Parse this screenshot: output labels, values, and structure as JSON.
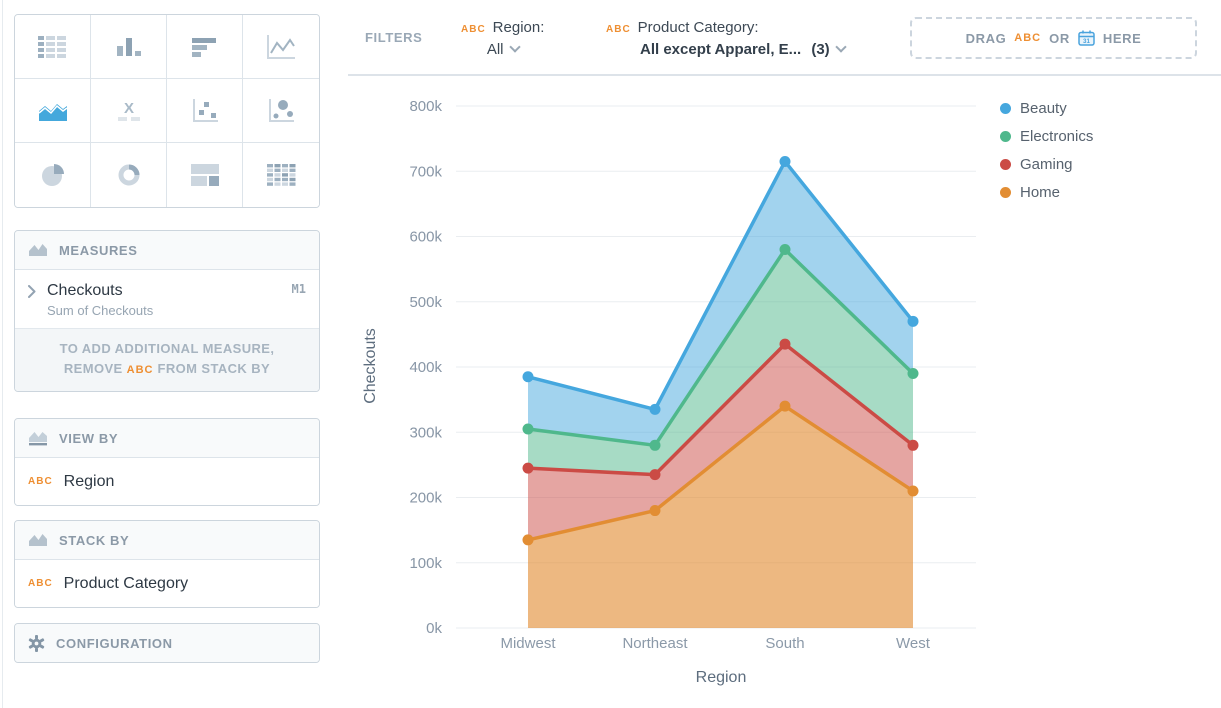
{
  "filter_bar": {
    "label": "FILTERS",
    "region_filter": {
      "badge": "ABC",
      "name": "Region:",
      "value": "All"
    },
    "category_filter": {
      "badge": "ABC",
      "name": "Product Category:",
      "value": "All except Apparel, E...",
      "count": "(3)"
    },
    "dropzone": {
      "drag": "DRAG",
      "badge": "ABC",
      "or": "OR",
      "here": "HERE"
    }
  },
  "sidebar": {
    "chart_picker": {
      "selected": "area",
      "types": [
        "table",
        "vertical-bars",
        "horizontal-bars",
        "line",
        "area",
        "x-bars",
        "scatter",
        "bubble",
        "pie",
        "donut",
        "treemap",
        "heatmap"
      ]
    },
    "measures": {
      "header": "MEASURES",
      "item": {
        "label": "Checkouts",
        "sublabel": "Sum of Checkouts",
        "badge": "M1"
      },
      "note": {
        "line1": "TO ADD ADDITIONAL MEASURE,",
        "line2_pre": "REMOVE",
        "line2_badge": "ABC",
        "line2_post": "FROM STACK BY"
      }
    },
    "view_by": {
      "header": "VIEW BY",
      "item": {
        "badge": "ABC",
        "label": "Region"
      }
    },
    "stack_by": {
      "header": "STACK BY",
      "item": {
        "badge": "ABC",
        "label": "Product Category"
      }
    },
    "configuration": {
      "header": "CONFIGURATION"
    }
  },
  "chart_data": {
    "type": "area",
    "stacked": true,
    "grid": true,
    "legend_position": "right",
    "xlabel": "Region",
    "ylabel": "Checkouts",
    "categories": [
      "Midwest",
      "Northeast",
      "South",
      "West"
    ],
    "units": "thousands (k)",
    "ylim": [
      0,
      800
    ],
    "ytick_step": 100,
    "ytick_suffix": "k",
    "series": [
      {
        "name": "Beauty",
        "color": "#45a7de",
        "values_k": [
          80,
          55,
          135,
          80
        ],
        "cumulative_k": [
          385,
          335,
          715,
          470
        ]
      },
      {
        "name": "Electronics",
        "color": "#4fb88c",
        "values_k": [
          60,
          45,
          145,
          110
        ],
        "cumulative_k": [
          305,
          280,
          580,
          390
        ]
      },
      {
        "name": "Gaming",
        "color": "#cb4b45",
        "values_k": [
          110,
          55,
          95,
          70
        ],
        "cumulative_k": [
          245,
          235,
          435,
          280
        ]
      },
      {
        "name": "Home",
        "color": "#e28d33",
        "values_k": [
          135,
          180,
          340,
          210
        ],
        "cumulative_k": [
          135,
          180,
          340,
          210
        ]
      }
    ]
  }
}
